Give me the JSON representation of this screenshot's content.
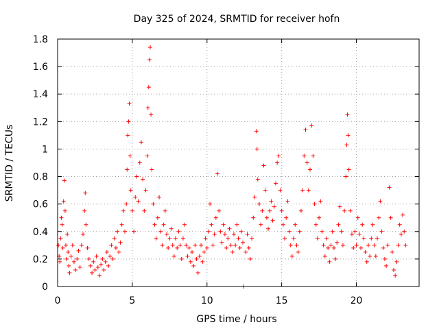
{
  "chart_data": {
    "type": "scatter",
    "title": "Day 325 of 2024, SRMTID for receiver hofn",
    "xlabel": "GPS time / hours",
    "ylabel": "SRMTID / TECUs",
    "xlim": [
      0,
      24.2
    ],
    "ylim": [
      0,
      1.8
    ],
    "xticks": [
      0,
      5,
      10,
      15,
      20
    ],
    "xtick_labels": [
      "0",
      "5",
      "10",
      "15",
      "20"
    ],
    "yticks": [
      0,
      0.2,
      0.4,
      0.6,
      0.8,
      1.0,
      1.2,
      1.4,
      1.6,
      1.8
    ],
    "ytick_labels": [
      "0",
      "0.2",
      "0.4",
      "0.6",
      "0.8",
      "1",
      "1.2",
      "1.4",
      "1.6",
      "1.8"
    ],
    "grid": true,
    "marker": "+",
    "series_color": "#ff0000",
    "series": [
      {
        "name": "SRMTID",
        "points": [
          [
            0.05,
            0.3
          ],
          [
            0.1,
            0.22
          ],
          [
            0.15,
            0.18
          ],
          [
            0.2,
            0.35
          ],
          [
            0.25,
            0.5
          ],
          [
            0.3,
            0.45
          ],
          [
            0.35,
            0.28
          ],
          [
            0.4,
            0.62
          ],
          [
            0.45,
            0.77
          ],
          [
            0.5,
            0.55
          ],
          [
            0.55,
            0.3
          ],
          [
            0.6,
            0.2
          ],
          [
            0.65,
            0.38
          ],
          [
            0.7,
            0.25
          ],
          [
            0.75,
            0.15
          ],
          [
            0.8,
            0.1
          ],
          [
            0.9,
            0.22
          ],
          [
            1.0,
            0.3
          ],
          [
            1.1,
            0.18
          ],
          [
            1.2,
            0.12
          ],
          [
            1.3,
            0.2
          ],
          [
            1.4,
            0.26
          ],
          [
            1.5,
            0.14
          ],
          [
            1.6,
            0.3
          ],
          [
            1.7,
            0.38
          ],
          [
            1.8,
            0.55
          ],
          [
            1.85,
            0.68
          ],
          [
            1.9,
            0.45
          ],
          [
            2.0,
            0.28
          ],
          [
            2.1,
            0.2
          ],
          [
            2.2,
            0.15
          ],
          [
            2.3,
            0.1
          ],
          [
            2.4,
            0.18
          ],
          [
            2.5,
            0.12
          ],
          [
            2.6,
            0.22
          ],
          [
            2.7,
            0.14
          ],
          [
            2.8,
            0.08
          ],
          [
            2.9,
            0.16
          ],
          [
            3.0,
            0.2
          ],
          [
            3.1,
            0.12
          ],
          [
            3.2,
            0.18
          ],
          [
            3.3,
            0.25
          ],
          [
            3.4,
            0.15
          ],
          [
            3.5,
            0.22
          ],
          [
            3.6,
            0.3
          ],
          [
            3.7,
            0.2
          ],
          [
            3.8,
            0.35
          ],
          [
            3.9,
            0.28
          ],
          [
            4.0,
            0.4
          ],
          [
            4.1,
            0.25
          ],
          [
            4.2,
            0.32
          ],
          [
            4.3,
            0.45
          ],
          [
            4.4,
            0.55
          ],
          [
            4.5,
            0.4
          ],
          [
            4.6,
            0.6
          ],
          [
            4.65,
            0.85
          ],
          [
            4.7,
            1.1
          ],
          [
            4.75,
            1.2
          ],
          [
            4.8,
            1.33
          ],
          [
            4.85,
            0.95
          ],
          [
            4.9,
            0.7
          ],
          [
            5.0,
            0.55
          ],
          [
            5.1,
            0.4
          ],
          [
            5.2,
            0.65
          ],
          [
            5.3,
            0.8
          ],
          [
            5.4,
            0.62
          ],
          [
            5.5,
            0.9
          ],
          [
            5.6,
            1.05
          ],
          [
            5.7,
            0.78
          ],
          [
            5.8,
            0.55
          ],
          [
            5.9,
            0.7
          ],
          [
            6.0,
            0.95
          ],
          [
            6.05,
            1.3
          ],
          [
            6.1,
            1.45
          ],
          [
            6.15,
            1.65
          ],
          [
            6.2,
            1.74
          ],
          [
            6.25,
            1.25
          ],
          [
            6.3,
            0.85
          ],
          [
            6.4,
            0.6
          ],
          [
            6.5,
            0.45
          ],
          [
            6.6,
            0.35
          ],
          [
            6.7,
            0.5
          ],
          [
            6.8,
            0.65
          ],
          [
            6.9,
            0.4
          ],
          [
            7.0,
            0.3
          ],
          [
            7.1,
            0.45
          ],
          [
            7.2,
            0.55
          ],
          [
            7.3,
            0.38
          ],
          [
            7.4,
            0.28
          ],
          [
            7.5,
            0.35
          ],
          [
            7.6,
            0.42
          ],
          [
            7.7,
            0.3
          ],
          [
            7.8,
            0.22
          ],
          [
            7.9,
            0.35
          ],
          [
            8.0,
            0.28
          ],
          [
            8.1,
            0.4
          ],
          [
            8.2,
            0.3
          ],
          [
            8.3,
            0.2
          ],
          [
            8.4,
            0.35
          ],
          [
            8.5,
            0.45
          ],
          [
            8.6,
            0.3
          ],
          [
            8.7,
            0.22
          ],
          [
            8.8,
            0.28
          ],
          [
            8.9,
            0.18
          ],
          [
            9.0,
            0.25
          ],
          [
            9.1,
            0.15
          ],
          [
            9.2,
            0.3
          ],
          [
            9.3,
            0.2
          ],
          [
            9.4,
            0.1
          ],
          [
            9.5,
            0.22
          ],
          [
            9.6,
            0.3
          ],
          [
            9.7,
            0.18
          ],
          [
            9.8,
            0.25
          ],
          [
            9.9,
            0.35
          ],
          [
            10.0,
            0.28
          ],
          [
            10.1,
            0.4
          ],
          [
            10.2,
            0.6
          ],
          [
            10.3,
            0.45
          ],
          [
            10.4,
            0.3
          ],
          [
            10.5,
            0.38
          ],
          [
            10.6,
            0.5
          ],
          [
            10.7,
            0.82
          ],
          [
            10.8,
            0.55
          ],
          [
            10.9,
            0.4
          ],
          [
            11.0,
            0.32
          ],
          [
            11.1,
            0.45
          ],
          [
            11.2,
            0.38
          ],
          [
            11.3,
            0.28
          ],
          [
            11.4,
            0.35
          ],
          [
            11.5,
            0.42
          ],
          [
            11.6,
            0.3
          ],
          [
            11.7,
            0.25
          ],
          [
            11.8,
            0.38
          ],
          [
            11.9,
            0.3
          ],
          [
            12.0,
            0.45
          ],
          [
            12.1,
            0.35
          ],
          [
            12.2,
            0.28
          ],
          [
            12.3,
            0.4
          ],
          [
            12.4,
            0.32
          ],
          [
            12.45,
            0.0
          ],
          [
            12.6,
            0.25
          ],
          [
            12.7,
            0.38
          ],
          [
            12.8,
            0.28
          ],
          [
            12.9,
            0.2
          ],
          [
            13.0,
            0.35
          ],
          [
            13.1,
            0.5
          ],
          [
            13.2,
            0.65
          ],
          [
            13.3,
            1.13
          ],
          [
            13.35,
            1.0
          ],
          [
            13.4,
            0.78
          ],
          [
            13.5,
            0.6
          ],
          [
            13.6,
            0.45
          ],
          [
            13.7,
            0.55
          ],
          [
            13.8,
            0.88
          ],
          [
            13.9,
            0.7
          ],
          [
            14.0,
            0.5
          ],
          [
            14.1,
            0.42
          ],
          [
            14.2,
            0.55
          ],
          [
            14.3,
            0.62
          ],
          [
            14.4,
            0.48
          ],
          [
            14.5,
            0.58
          ],
          [
            14.6,
            0.75
          ],
          [
            14.7,
            0.9
          ],
          [
            14.8,
            0.95
          ],
          [
            14.9,
            0.7
          ],
          [
            15.0,
            0.55
          ],
          [
            15.1,
            0.45
          ],
          [
            15.2,
            0.35
          ],
          [
            15.3,
            0.5
          ],
          [
            15.4,
            0.62
          ],
          [
            15.5,
            0.4
          ],
          [
            15.6,
            0.3
          ],
          [
            15.7,
            0.22
          ],
          [
            15.8,
            0.35
          ],
          [
            15.9,
            0.45
          ],
          [
            16.0,
            0.3
          ],
          [
            16.1,
            0.25
          ],
          [
            16.2,
            0.4
          ],
          [
            16.3,
            0.55
          ],
          [
            16.4,
            0.7
          ],
          [
            16.5,
            0.95
          ],
          [
            16.6,
            1.14
          ],
          [
            16.7,
            0.9
          ],
          [
            16.8,
            0.7
          ],
          [
            16.9,
            0.85
          ],
          [
            17.0,
            1.17
          ],
          [
            17.1,
            0.95
          ],
          [
            17.2,
            0.6
          ],
          [
            17.3,
            0.45
          ],
          [
            17.4,
            0.35
          ],
          [
            17.5,
            0.5
          ],
          [
            17.6,
            0.62
          ],
          [
            17.7,
            0.4
          ],
          [
            17.8,
            0.3
          ],
          [
            17.9,
            0.22
          ],
          [
            18.0,
            0.35
          ],
          [
            18.1,
            0.28
          ],
          [
            18.2,
            0.18
          ],
          [
            18.3,
            0.3
          ],
          [
            18.4,
            0.4
          ],
          [
            18.5,
            0.28
          ],
          [
            18.6,
            0.2
          ],
          [
            18.7,
            0.32
          ],
          [
            18.8,
            0.45
          ],
          [
            18.9,
            0.58
          ],
          [
            19.0,
            0.4
          ],
          [
            19.1,
            0.3
          ],
          [
            19.2,
            0.55
          ],
          [
            19.3,
            0.8
          ],
          [
            19.35,
            1.03
          ],
          [
            19.4,
            1.25
          ],
          [
            19.45,
            1.1
          ],
          [
            19.5,
            0.85
          ],
          [
            19.6,
            0.55
          ],
          [
            19.7,
            0.38
          ],
          [
            19.8,
            0.28
          ],
          [
            19.9,
            0.4
          ],
          [
            20.0,
            0.3
          ],
          [
            20.1,
            0.5
          ],
          [
            20.2,
            0.38
          ],
          [
            20.3,
            0.28
          ],
          [
            20.4,
            0.45
          ],
          [
            20.5,
            0.35
          ],
          [
            20.6,
            0.25
          ],
          [
            20.7,
            0.18
          ],
          [
            20.8,
            0.3
          ],
          [
            20.9,
            0.22
          ],
          [
            21.0,
            0.35
          ],
          [
            21.1,
            0.45
          ],
          [
            21.2,
            0.3
          ],
          [
            21.3,
            0.22
          ],
          [
            21.4,
            0.35
          ],
          [
            21.5,
            0.5
          ],
          [
            21.6,
            0.62
          ],
          [
            21.7,
            0.4
          ],
          [
            21.8,
            0.28
          ],
          [
            21.9,
            0.2
          ],
          [
            22.0,
            0.15
          ],
          [
            22.1,
            0.3
          ],
          [
            22.2,
            0.72
          ],
          [
            22.3,
            0.5
          ],
          [
            22.4,
            0.25
          ],
          [
            22.5,
            0.12
          ],
          [
            22.6,
            0.08
          ],
          [
            22.7,
            0.18
          ],
          [
            22.8,
            0.3
          ],
          [
            22.9,
            0.45
          ],
          [
            23.0,
            0.38
          ],
          [
            23.1,
            0.52
          ],
          [
            23.2,
            0.4
          ],
          [
            23.3,
            0.3
          ]
        ]
      }
    ]
  }
}
